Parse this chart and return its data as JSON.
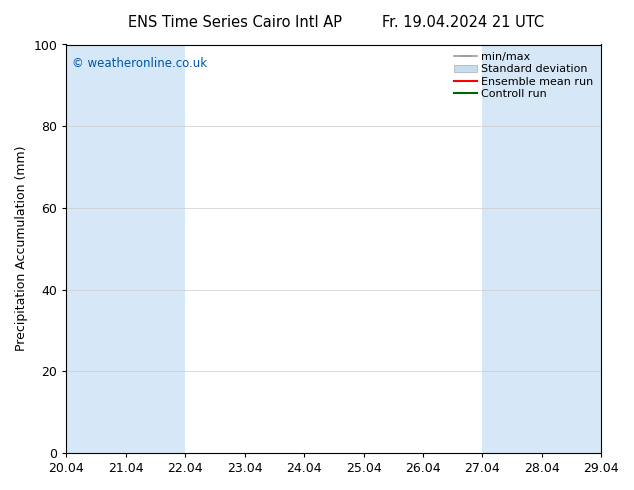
{
  "title_left": "ENS Time Series Cairo Intl AP",
  "title_right": "Fr. 19.04.2024 21 UTC",
  "ylabel": "Precipitation Accumulation (mm)",
  "watermark": "© weatheronline.co.uk",
  "watermark_color": "#0055aa",
  "xlim_left": 20.04,
  "xlim_right": 29.04,
  "ylim_bottom": 0,
  "ylim_top": 100,
  "xtick_labels": [
    "20.04",
    "21.04",
    "22.04",
    "23.04",
    "24.04",
    "25.04",
    "26.04",
    "27.04",
    "28.04",
    "29.04"
  ],
  "xtick_positions": [
    20.04,
    21.04,
    22.04,
    23.04,
    24.04,
    25.04,
    26.04,
    27.04,
    28.04,
    29.04
  ],
  "ytick_positions": [
    0,
    20,
    40,
    60,
    80,
    100
  ],
  "ytick_labels": [
    "0",
    "20",
    "40",
    "60",
    "80",
    "100"
  ],
  "shaded_regions": [
    [
      20.04,
      21.04
    ],
    [
      21.04,
      22.04
    ],
    [
      27.04,
      28.04
    ],
    [
      28.04,
      29.04
    ]
  ],
  "band_color": "#d6e8f7",
  "legend_items": [
    {
      "label": "min/max",
      "color": "#aaaaaa",
      "style": "errorbar"
    },
    {
      "label": "Standard deviation",
      "color": "#c5ddef",
      "style": "box"
    },
    {
      "label": "Ensemble mean run",
      "color": "#ff0000",
      "style": "line"
    },
    {
      "label": "Controll run",
      "color": "#006600",
      "style": "line"
    }
  ],
  "background_color": "#ffffff",
  "plot_bg_color": "#ffffff",
  "font_size": 9,
  "title_font_size": 10.5
}
